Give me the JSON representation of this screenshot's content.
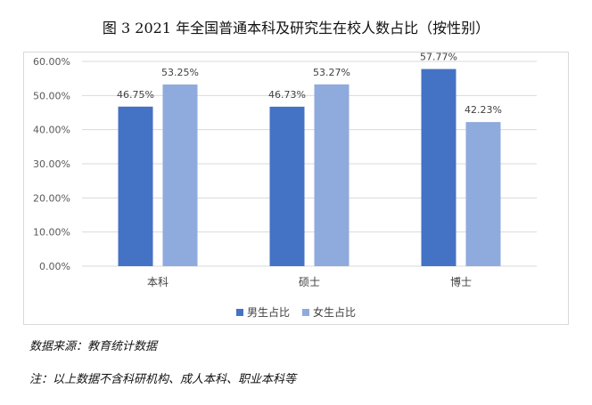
{
  "title": "图 3 2021 年全国普通本科及研究生在校人数占比（按性别）",
  "source": "数据来源：教育统计数据",
  "note": "注：以上数据不含科研机构、成人本科、职业本科等",
  "colors": {
    "male": "#4472c4",
    "female": "#8faadc",
    "grid": "#d9d9d9"
  },
  "chart_data": {
    "type": "bar",
    "categories": [
      "本科",
      "硕士",
      "博士"
    ],
    "series": [
      {
        "name": "男生占比",
        "values": [
          46.75,
          46.73,
          57.77
        ],
        "labels": [
          "46.75%",
          "46.73%",
          "57.77%"
        ],
        "color": "#4472c4"
      },
      {
        "name": "女生占比",
        "values": [
          53.25,
          53.27,
          42.23
        ],
        "labels": [
          "53.25%",
          "53.27%",
          "42.23%"
        ],
        "color": "#8faadc"
      }
    ],
    "ylim": [
      0,
      60
    ],
    "yticks": [
      "0.00%",
      "10.00%",
      "20.00%",
      "30.00%",
      "40.00%",
      "50.00%",
      "60.00%"
    ],
    "grid": true,
    "legend": "bottom"
  }
}
